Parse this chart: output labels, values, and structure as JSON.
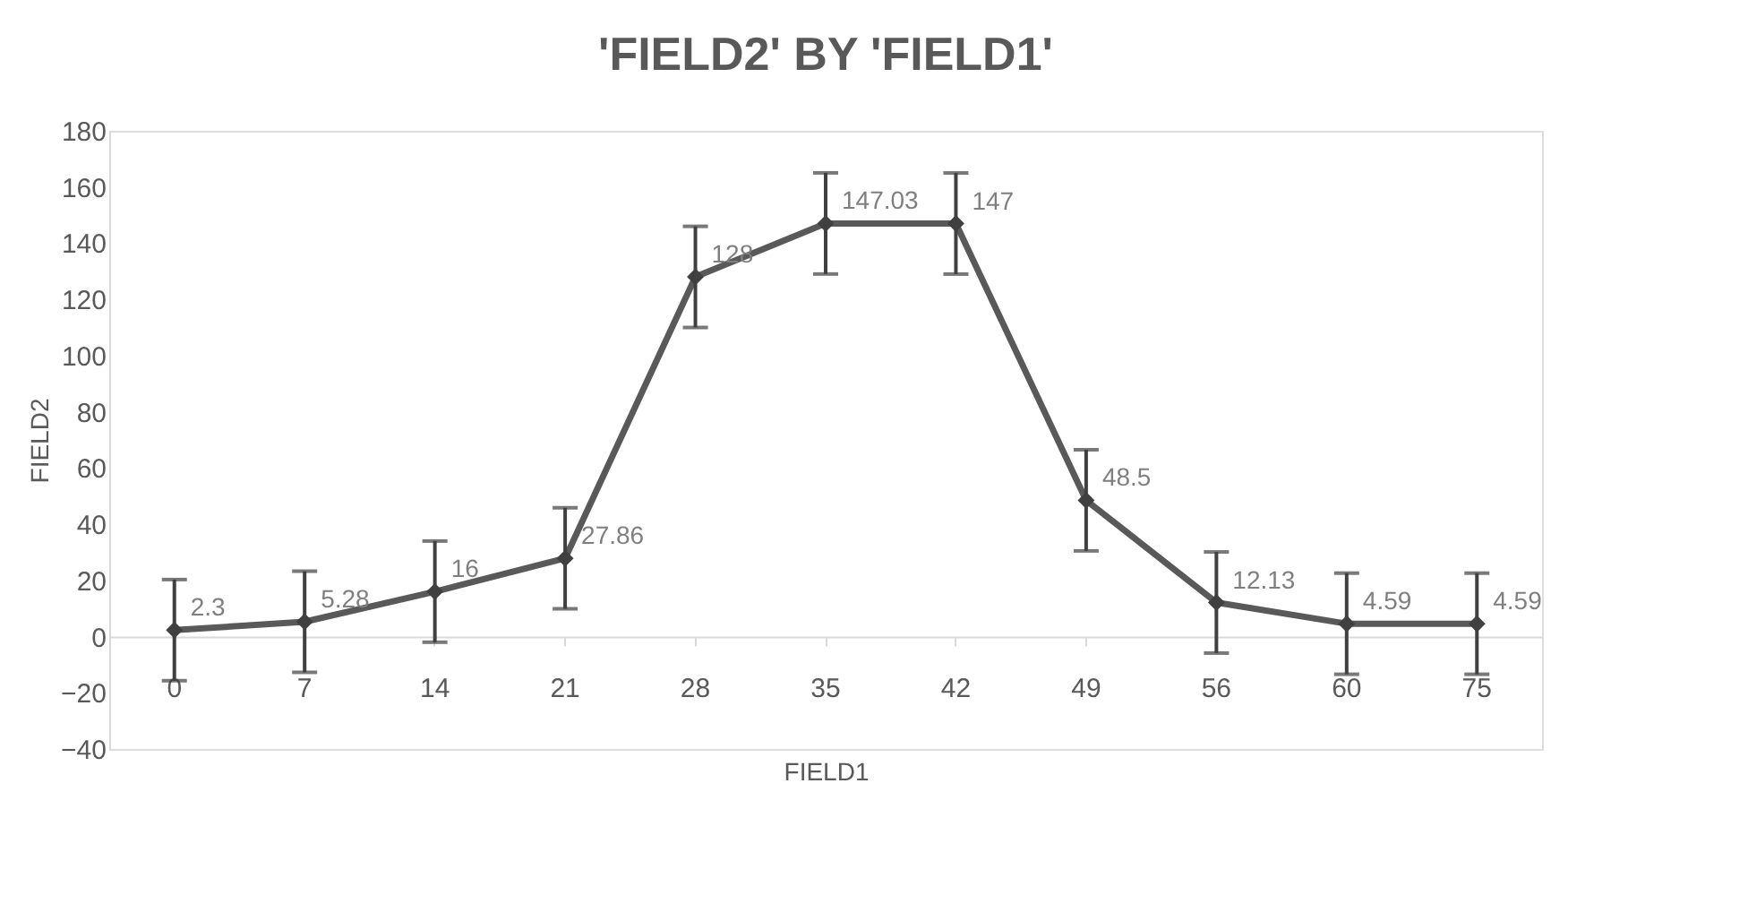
{
  "chart_data": {
    "type": "line",
    "title": "'FIELD2'  BY  'FIELD1'",
    "xlabel": "FIELD1",
    "ylabel": "FIELD2",
    "categories": [
      "0",
      "7",
      "14",
      "21",
      "28",
      "35",
      "42",
      "49",
      "56",
      "60",
      "75"
    ],
    "series": [
      {
        "color": "#595959",
        "values": [
          2.3,
          5.28,
          16,
          27.86,
          128,
          147.03,
          147,
          48.5,
          12.13,
          4.59,
          4.59
        ],
        "errors": [
          18,
          18,
          18,
          18,
          18,
          18,
          18,
          18,
          18,
          18,
          18
        ],
        "value_labels": [
          "2.3",
          "5.28",
          "16",
          "27.86",
          "128",
          "147.03",
          "147",
          "48.5",
          "12.13",
          "4.59",
          "4.59"
        ]
      }
    ],
    "ylim": [
      -40,
      180
    ],
    "yticks": [
      -40,
      -20,
      0,
      20,
      40,
      60,
      80,
      100,
      120,
      140,
      160,
      180
    ],
    "grid": false,
    "marker": "diamond",
    "line_style": "solid"
  }
}
